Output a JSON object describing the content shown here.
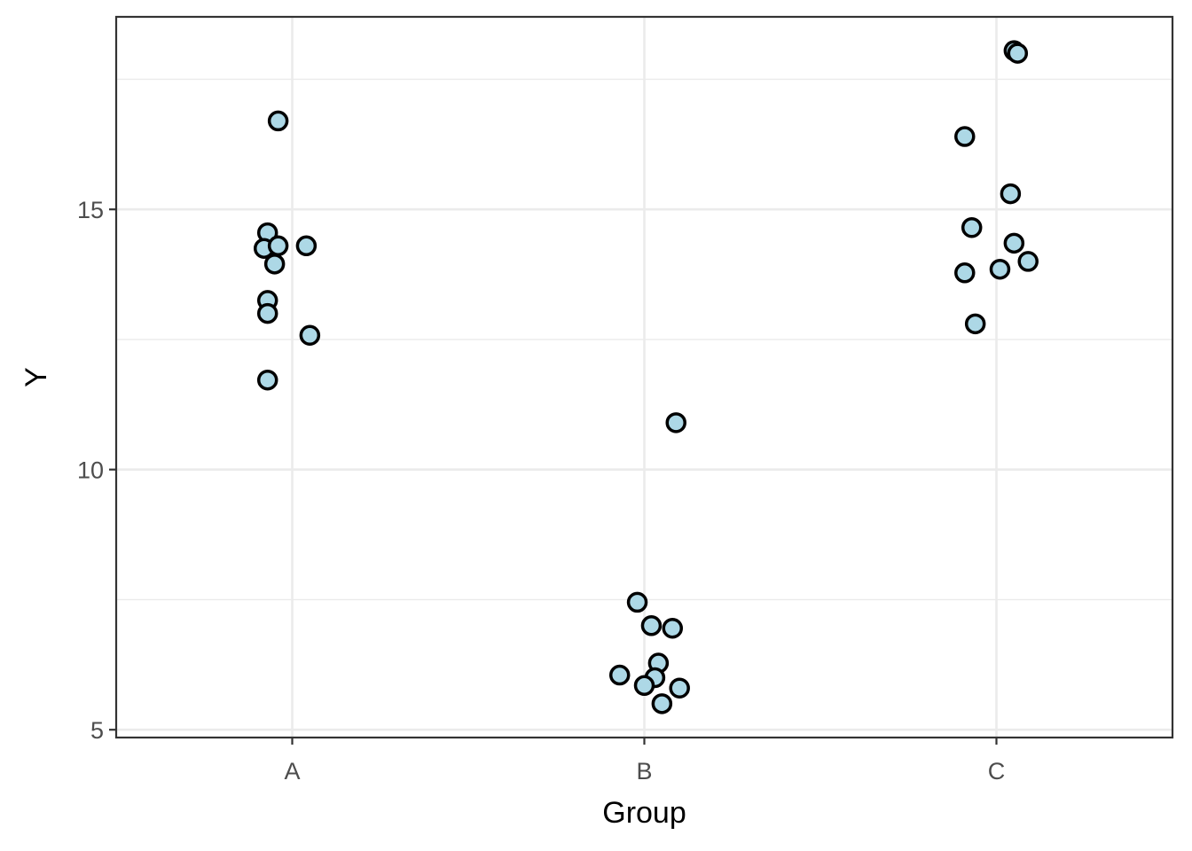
{
  "chart_data": {
    "type": "scatter",
    "title": "",
    "xlabel": "Group",
    "ylabel": "Y",
    "categories": [
      "A",
      "B",
      "C"
    ],
    "ylim": [
      4.85,
      18.7
    ],
    "y_ticks": [
      5,
      10,
      15
    ],
    "y_minor": [
      7.5,
      12.5,
      17.5
    ],
    "y_tick_labels": [
      "5",
      "10",
      "15"
    ],
    "grid": true,
    "legend": "none",
    "marker_fill": "#add8e6",
    "marker_edge": "#000000",
    "points": [
      {
        "group": "A",
        "jitter": -0.04,
        "y": 16.7
      },
      {
        "group": "A",
        "jitter": -0.07,
        "y": 14.55
      },
      {
        "group": "A",
        "jitter": -0.08,
        "y": 14.25
      },
      {
        "group": "A",
        "jitter": -0.04,
        "y": 14.3
      },
      {
        "group": "A",
        "jitter": 0.04,
        "y": 14.3
      },
      {
        "group": "A",
        "jitter": -0.05,
        "y": 13.95
      },
      {
        "group": "A",
        "jitter": -0.07,
        "y": 13.25
      },
      {
        "group": "A",
        "jitter": -0.07,
        "y": 13.0
      },
      {
        "group": "A",
        "jitter": 0.05,
        "y": 12.58
      },
      {
        "group": "A",
        "jitter": -0.07,
        "y": 11.72
      },
      {
        "group": "B",
        "jitter": 0.09,
        "y": 10.9
      },
      {
        "group": "B",
        "jitter": -0.02,
        "y": 7.45
      },
      {
        "group": "B",
        "jitter": 0.02,
        "y": 7.0
      },
      {
        "group": "B",
        "jitter": 0.08,
        "y": 6.95
      },
      {
        "group": "B",
        "jitter": 0.04,
        "y": 6.28
      },
      {
        "group": "B",
        "jitter": -0.07,
        "y": 6.05
      },
      {
        "group": "B",
        "jitter": 0.03,
        "y": 6.0
      },
      {
        "group": "B",
        "jitter": 0.0,
        "y": 5.85
      },
      {
        "group": "B",
        "jitter": 0.1,
        "y": 5.8
      },
      {
        "group": "B",
        "jitter": 0.05,
        "y": 5.5
      },
      {
        "group": "C",
        "jitter": 0.05,
        "y": 18.05
      },
      {
        "group": "C",
        "jitter": 0.06,
        "y": 18.0
      },
      {
        "group": "C",
        "jitter": -0.09,
        "y": 16.4
      },
      {
        "group": "C",
        "jitter": 0.04,
        "y": 15.3
      },
      {
        "group": "C",
        "jitter": -0.07,
        "y": 14.65
      },
      {
        "group": "C",
        "jitter": 0.05,
        "y": 14.35
      },
      {
        "group": "C",
        "jitter": 0.09,
        "y": 14.0
      },
      {
        "group": "C",
        "jitter": 0.01,
        "y": 13.85
      },
      {
        "group": "C",
        "jitter": -0.09,
        "y": 13.78
      },
      {
        "group": "C",
        "jitter": -0.06,
        "y": 12.8
      }
    ]
  }
}
